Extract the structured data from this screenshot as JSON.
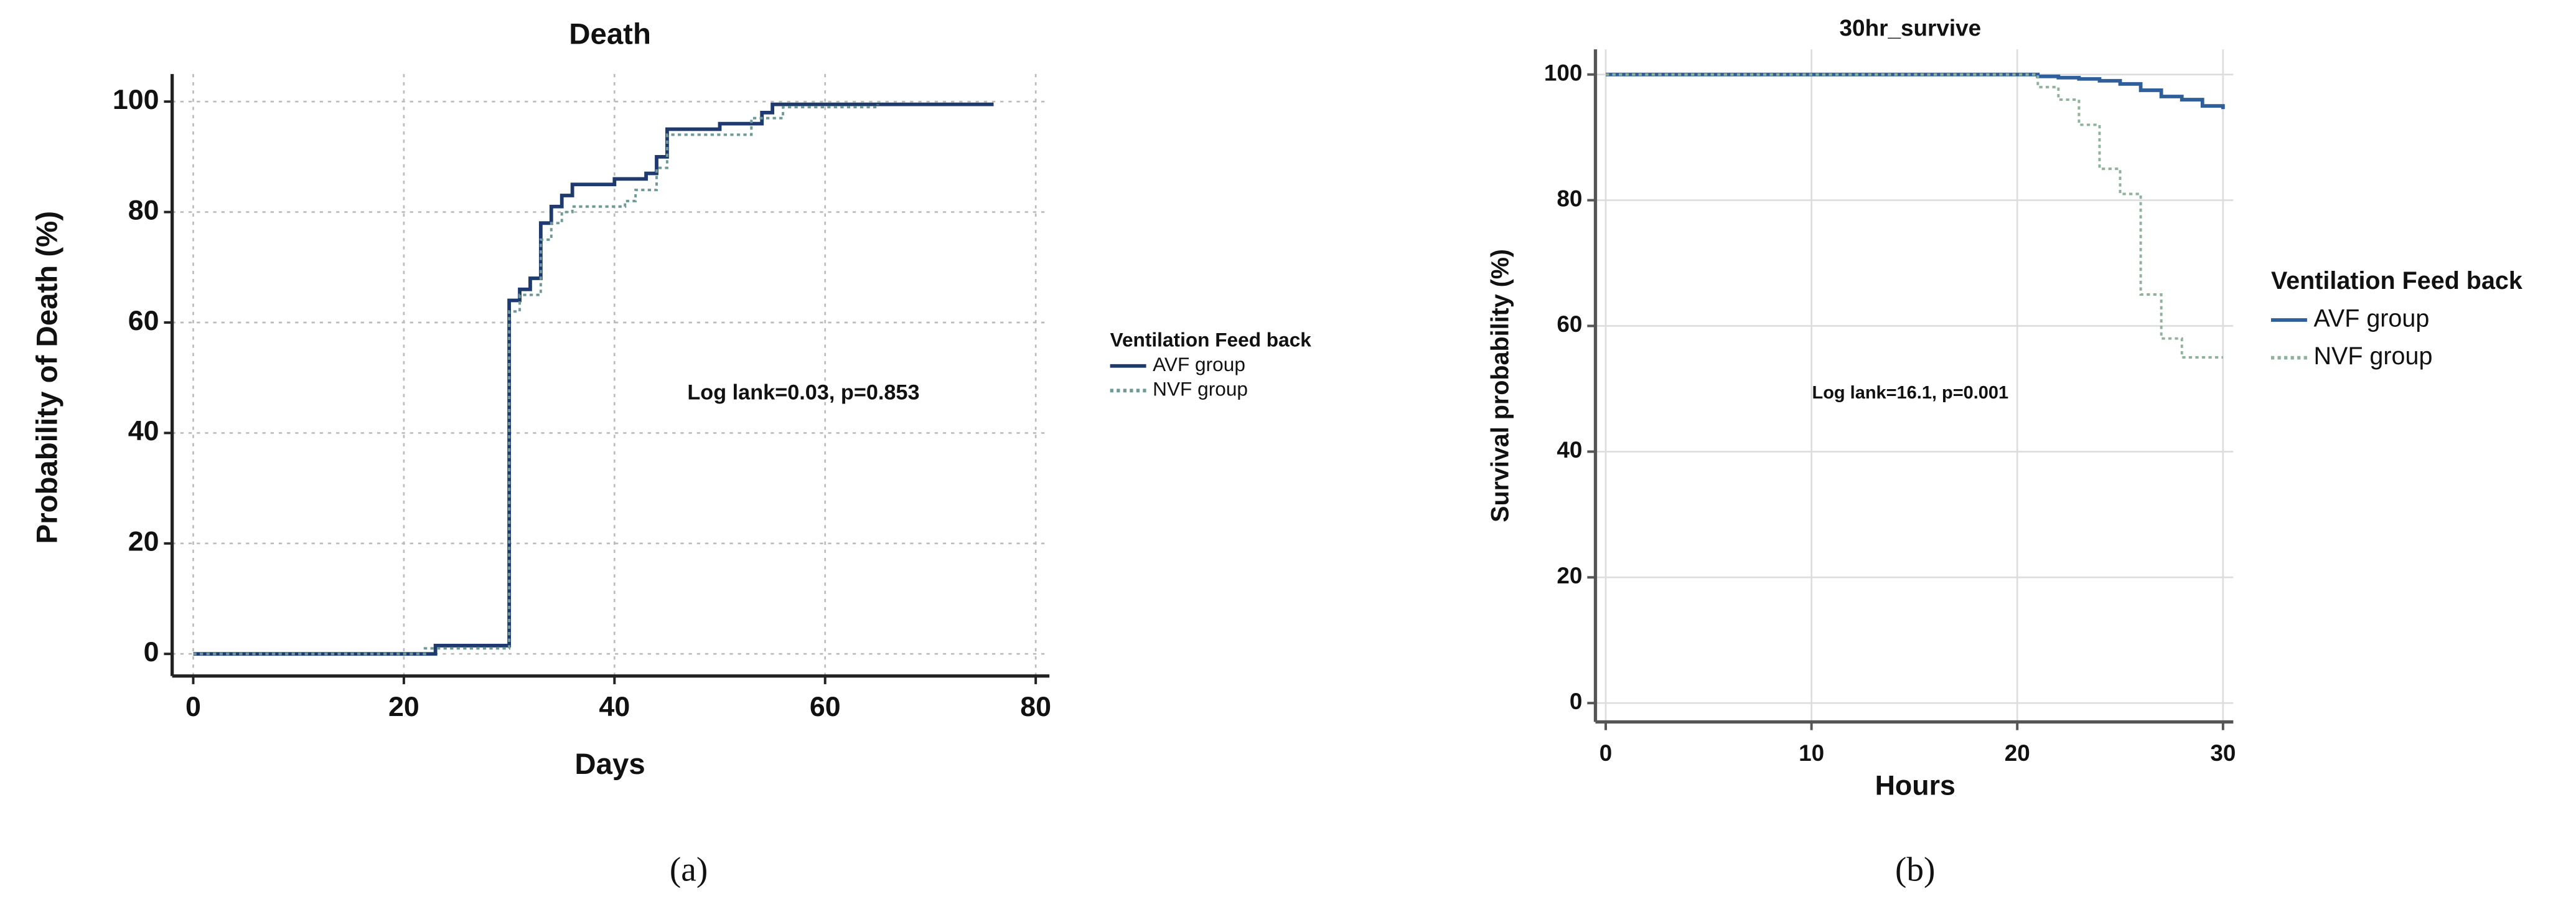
{
  "chart_data": [
    {
      "type": "line",
      "drawstyle": "steps-post",
      "title": "Death",
      "xlabel": "Days",
      "ylabel": "Probability of Death (%)",
      "xlim": [
        -2,
        81.3
      ],
      "xticks": [
        0,
        20,
        40,
        60,
        80
      ],
      "ylim": [
        -4,
        105
      ],
      "yticks": [
        0,
        20,
        40,
        60,
        80,
        100
      ],
      "grid": true,
      "legend_title": "Ventilation  Feed back",
      "annotation": "Log lank=0.03, p=0.853",
      "panel_label": "(a)",
      "series": [
        {
          "name": "AVF group",
          "color": "#1f3a6e",
          "linestyle": "solid",
          "x": [
            0,
            23,
            30,
            31,
            32,
            33,
            34,
            35,
            36,
            40,
            43,
            44,
            45,
            50,
            54,
            55,
            76
          ],
          "values": [
            0,
            1.5,
            64,
            66,
            68,
            78,
            81,
            83,
            85,
            86,
            87,
            90,
            95,
            96,
            98,
            99.5,
            99.5
          ]
        },
        {
          "name": "NVF group",
          "color": "#6f9a98",
          "linestyle": "dotted",
          "x": [
            0,
            22,
            30,
            31,
            33,
            34,
            35,
            36,
            41,
            42,
            44,
            45,
            53,
            56,
            65
          ],
          "values": [
            0,
            1,
            62,
            65,
            75,
            78,
            80,
            81,
            82,
            84,
            88,
            94,
            97,
            99,
            99.5
          ]
        }
      ]
    },
    {
      "type": "line",
      "drawstyle": "steps-post",
      "title": "30hr_survive",
      "xlabel": "Hours",
      "ylabel": "Survival probability (%)",
      "xlim": [
        -0.5,
        30.5
      ],
      "xticks": [
        0,
        10,
        20,
        30
      ],
      "ylim": [
        -3,
        104
      ],
      "yticks": [
        0,
        20,
        40,
        60,
        80,
        100
      ],
      "grid": true,
      "legend_title": "Ventilation  Feed back",
      "annotation": "Log lank=16.1, p=0.001",
      "panel_label": "(b)",
      "series": [
        {
          "name": "AVF group",
          "color": "#2f5f9a",
          "linestyle": "solid",
          "x": [
            0,
            21,
            22,
            23,
            24,
            25,
            26,
            27,
            28,
            29,
            30
          ],
          "values": [
            100,
            99.7,
            99.5,
            99.3,
            99,
            98.5,
            97.5,
            96.5,
            96,
            95,
            94.5
          ]
        },
        {
          "name": "NVF group",
          "color": "#8fb29a",
          "linestyle": "dotted",
          "x": [
            0,
            21,
            22,
            23,
            24,
            25,
            26,
            27,
            28,
            29,
            30
          ],
          "values": [
            100,
            98,
            96,
            92,
            85,
            81,
            65,
            58,
            55,
            55,
            55
          ]
        }
      ]
    }
  ]
}
